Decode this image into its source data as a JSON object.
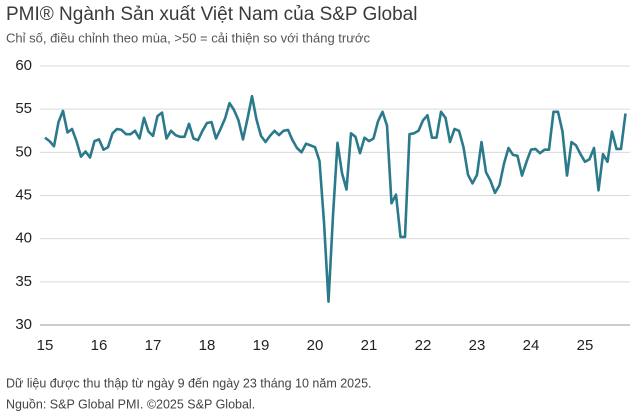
{
  "chart_data": {
    "type": "line",
    "title": "PMI® Ngành Sản xuất Việt Nam của S&P Global",
    "subtitle": "Chỉ số, điều chỉnh theo mùa, >50 = cải thiện so với tháng trước",
    "notes": [
      "Dữ liệu được thu thập từ ngày 9 đến ngày 23 tháng 10 năm 2025.",
      "Nguồn: S&P Global PMI. ©2025 S&P Global."
    ],
    "categories": [
      "15",
      null,
      null,
      null,
      null,
      null,
      null,
      null,
      null,
      null,
      null,
      null,
      "16",
      null,
      null,
      null,
      null,
      null,
      null,
      null,
      null,
      null,
      null,
      null,
      "17",
      null,
      null,
      null,
      null,
      null,
      null,
      null,
      null,
      null,
      null,
      null,
      "18",
      null,
      null,
      null,
      null,
      null,
      null,
      null,
      null,
      null,
      null,
      null,
      "19",
      null,
      null,
      null,
      null,
      null,
      null,
      null,
      null,
      null,
      null,
      null,
      "20",
      null,
      null,
      null,
      null,
      null,
      null,
      null,
      null,
      null,
      null,
      null,
      "21",
      null,
      null,
      null,
      null,
      null,
      null,
      null,
      null,
      null,
      null,
      null,
      "22",
      null,
      null,
      null,
      null,
      null,
      null,
      null,
      null,
      null,
      null,
      null,
      "23",
      null,
      null,
      null,
      null,
      null,
      null,
      null,
      null,
      null,
      null,
      null,
      "24",
      null,
      null,
      null,
      null,
      null,
      null,
      null,
      null,
      null,
      null,
      null,
      "25",
      null,
      null,
      null,
      null,
      null,
      null,
      null,
      null,
      null
    ],
    "series": [
      {
        "name": "PMI",
        "color": "#2b7a8b",
        "values": [
          51.7,
          51.3,
          50.7,
          53.5,
          54.8,
          52.3,
          52.7,
          51.3,
          49.5,
          50.1,
          49.4,
          51.3,
          51.5,
          50.3,
          50.6,
          52.2,
          52.7,
          52.6,
          52.1,
          52.1,
          52.5,
          51.6,
          54.0,
          52.4,
          51.9,
          54.2,
          54.6,
          51.6,
          52.5,
          52.0,
          51.8,
          51.8,
          53.3,
          51.6,
          51.4,
          52.5,
          53.4,
          53.5,
          51.6,
          52.7,
          53.9,
          55.7,
          54.9,
          53.7,
          51.5,
          53.9,
          56.5,
          53.8,
          51.9,
          51.2,
          51.9,
          52.5,
          52.0,
          52.5,
          52.6,
          51.4,
          50.5,
          50.0,
          51.0,
          50.8,
          50.6,
          49.0,
          41.9,
          32.7,
          42.7,
          51.1,
          47.6,
          45.7,
          52.2,
          51.8,
          49.9,
          51.7,
          51.3,
          51.6,
          53.6,
          54.7,
          53.1,
          44.1,
          45.1,
          40.2,
          40.2,
          52.1,
          52.2,
          52.5,
          53.7,
          54.3,
          51.7,
          51.7,
          54.7,
          54.0,
          51.2,
          52.7,
          52.5,
          50.6,
          47.4,
          46.4,
          47.4,
          51.2,
          47.7,
          46.7,
          45.3,
          46.2,
          48.7,
          50.5,
          49.7,
          49.6,
          47.3,
          48.9,
          50.3,
          50.4,
          49.9,
          50.3,
          50.3,
          54.7,
          54.7,
          52.4,
          47.3,
          51.2,
          50.8,
          49.8,
          48.9,
          49.2,
          50.5,
          45.6,
          49.8,
          48.9,
          52.4,
          50.4,
          50.4,
          54.5
        ]
      }
    ],
    "ylim": [
      30,
      60
    ],
    "yticks": [
      30,
      35,
      40,
      45,
      50,
      55,
      60
    ],
    "grid": true
  }
}
